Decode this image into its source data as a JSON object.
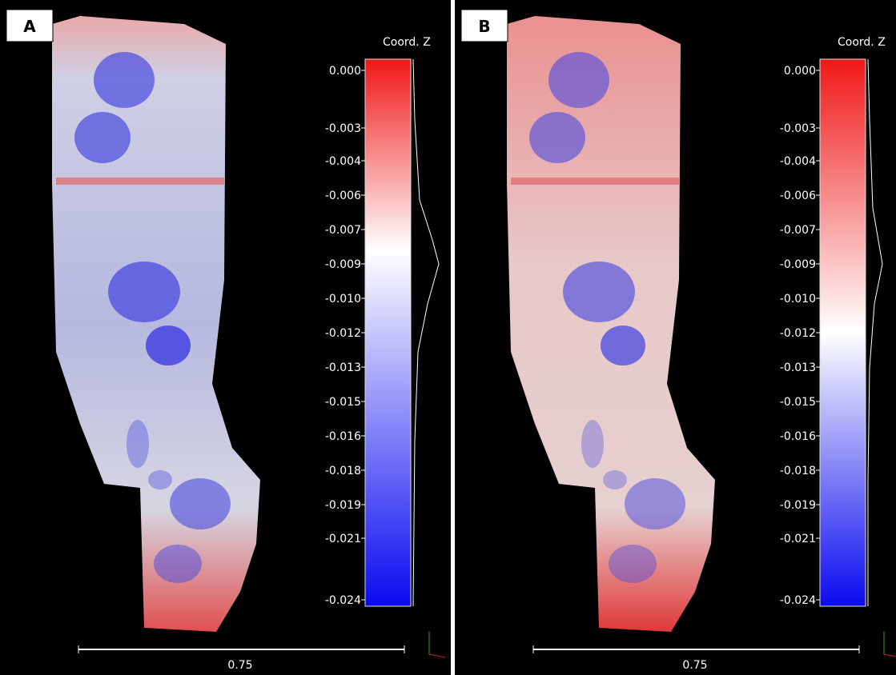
{
  "panels": [
    {
      "label": "A",
      "colorbar": {
        "title": "Coord. Z",
        "ticks": [
          "0.000",
          "-0.003",
          "-0.004",
          "-0.006",
          "-0.007",
          "-0.009",
          "-0.010",
          "-0.012",
          "-0.013",
          "-0.015",
          "-0.016",
          "-0.018",
          "-0.019",
          "-0.021",
          "-0.024"
        ]
      },
      "scale_bar": "0.75"
    },
    {
      "label": "B",
      "colorbar": {
        "title": "Coord. Z",
        "ticks": [
          "0.000",
          "-0.003",
          "-0.004",
          "-0.006",
          "-0.007",
          "-0.009",
          "-0.010",
          "-0.012",
          "-0.013",
          "-0.015",
          "-0.016",
          "-0.018",
          "-0.019",
          "-0.021",
          "-0.024"
        ]
      },
      "scale_bar": "0.75"
    }
  ]
}
